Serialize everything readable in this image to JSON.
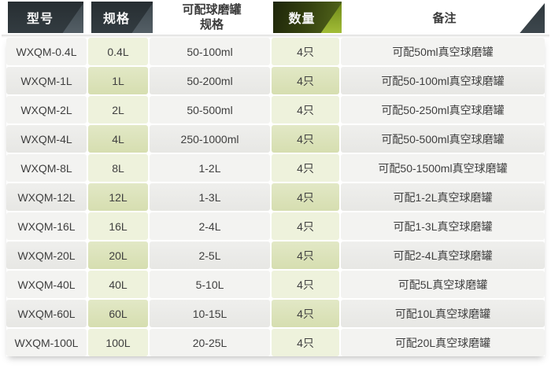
{
  "chart_data": {
    "type": "table",
    "columns": [
      "型号",
      "规格",
      "可配球磨罐\n规格",
      "数量",
      "备注"
    ],
    "rows": [
      [
        "WXQM-0.4L",
        "0.4L",
        "50-100ml",
        "4只",
        "可配50ml真空球磨罐"
      ],
      [
        "WXQM-1L",
        "1L",
        "50-200ml",
        "4只",
        "可配50-100ml真空球磨罐"
      ],
      [
        "WXQM-2L",
        "2L",
        "50-500ml",
        "4只",
        "可配50-250ml真空球磨罐"
      ],
      [
        "WXQM-4L",
        "4L",
        "250-1000ml",
        "4只",
        "可配50-500ml真空球磨罐"
      ],
      [
        "WXQM-8L",
        "8L",
        "1-2L",
        "4只",
        "可配50-1500ml真空球磨罐"
      ],
      [
        "WXQM-12L",
        "12L",
        "1-3L",
        "4只",
        "可配1-2L真空球磨罐"
      ],
      [
        "WXQM-16L",
        "16L",
        "2-4L",
        "4只",
        "可配1-3L真空球磨罐"
      ],
      [
        "WXQM-20L",
        "20L",
        "2-5L",
        "4只",
        "可配2-4L真空球磨罐"
      ],
      [
        "WXQM-40L",
        "40L",
        "5-10L",
        "4只",
        "可配5L真空球磨罐"
      ],
      [
        "WXQM-60L",
        "60L",
        "10-15L",
        "4只",
        "可配10L真空球磨罐"
      ],
      [
        "WXQM-100L",
        "100L",
        "20-25L",
        "4只",
        "可配20L真空球磨罐"
      ]
    ],
    "title": "",
    "legend": "none",
    "grid": "off"
  },
  "colors": {
    "header_band_dark": "#2d3539",
    "header_fold_dark": "#4a555b",
    "header_band_green": "#44561a",
    "header_fold_green": "#8aa52c",
    "header_text_light": "#f7f7f7",
    "header_text_dark": "#3b3b3b",
    "cell_grey_light": "#f3f3f1",
    "cell_grey_dark": "#e9e9e6",
    "cell_green_light": "#eef2dc",
    "cell_green_dark": "#d9e0b6",
    "body_text": "#3f3f3f"
  }
}
